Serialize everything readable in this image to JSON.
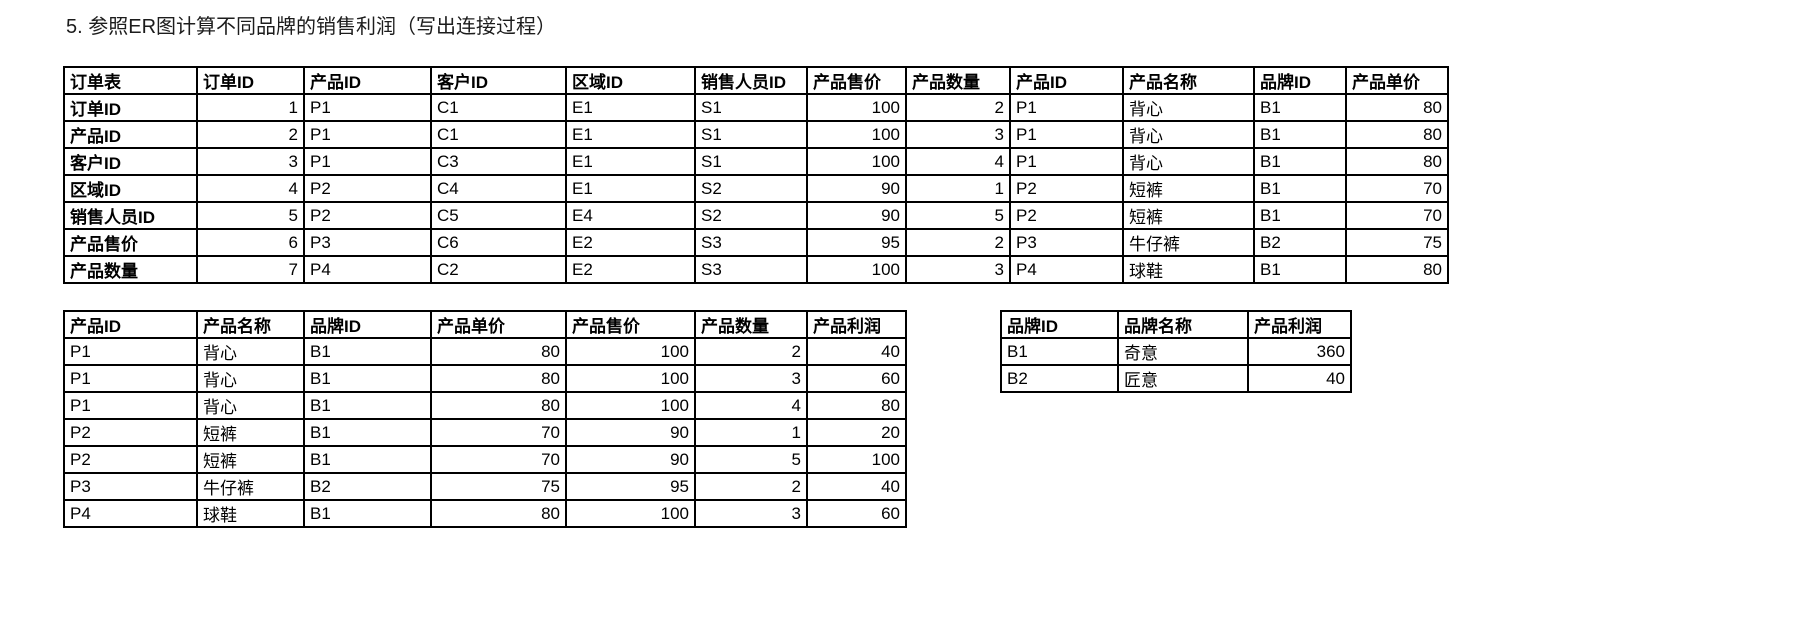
{
  "title": "5. 参照ER图计算不同品牌的销售利润（写出连接过程）",
  "colors": {
    "grid_border": "#000000",
    "text": "#000000",
    "background": "#ffffff"
  },
  "order_table": {
    "columns": [
      "订单表",
      "订单ID",
      "产品ID",
      "客户ID",
      "区域ID",
      "销售人员ID",
      "产品售价",
      "产品数量",
      "产品ID",
      "产品名称",
      "品牌ID",
      "产品单价"
    ],
    "rows": [
      [
        "订单ID",
        "1",
        "P1",
        "C1",
        "E1",
        "S1",
        "100",
        "2",
        "P1",
        "背心",
        "B1",
        "80"
      ],
      [
        "产品ID",
        "2",
        "P1",
        "C1",
        "E1",
        "S1",
        "100",
        "3",
        "P1",
        "背心",
        "B1",
        "80"
      ],
      [
        "客户ID",
        "3",
        "P1",
        "C3",
        "E1",
        "S1",
        "100",
        "4",
        "P1",
        "背心",
        "B1",
        "80"
      ],
      [
        "区域ID",
        "4",
        "P2",
        "C4",
        "E1",
        "S2",
        "90",
        "1",
        "P2",
        "短裤",
        "B1",
        "70"
      ],
      [
        "销售人员ID",
        "5",
        "P2",
        "C5",
        "E4",
        "S2",
        "90",
        "5",
        "P2",
        "短裤",
        "B1",
        "70"
      ],
      [
        "产品售价",
        "6",
        "P3",
        "C6",
        "E2",
        "S3",
        "95",
        "2",
        "P3",
        "牛仔裤",
        "B2",
        "75"
      ],
      [
        "产品数量",
        "7",
        "P4",
        "C2",
        "E2",
        "S3",
        "100",
        "3",
        "P4",
        "球鞋",
        "B1",
        "80"
      ]
    ]
  },
  "product_table": {
    "columns": [
      "产品ID",
      "产品名称",
      "品牌ID",
      "产品单价",
      "产品售价",
      "产品数量",
      "产品利润"
    ],
    "rows": [
      [
        "P1",
        "背心",
        "B1",
        "80",
        "100",
        "2",
        "40"
      ],
      [
        "P1",
        "背心",
        "B1",
        "80",
        "100",
        "3",
        "60"
      ],
      [
        "P1",
        "背心",
        "B1",
        "80",
        "100",
        "4",
        "80"
      ],
      [
        "P2",
        "短裤",
        "B1",
        "70",
        "90",
        "1",
        "20"
      ],
      [
        "P2",
        "短裤",
        "B1",
        "70",
        "90",
        "5",
        "100"
      ],
      [
        "P3",
        "牛仔裤",
        "B2",
        "75",
        "95",
        "2",
        "40"
      ],
      [
        "P4",
        "球鞋",
        "B1",
        "80",
        "100",
        "3",
        "60"
      ]
    ]
  },
  "brand_table": {
    "columns": [
      "品牌ID",
      "品牌名称",
      "产品利润"
    ],
    "rows": [
      [
        "B1",
        "奇意",
        "360"
      ],
      [
        "B2",
        "匠意",
        "40"
      ]
    ]
  }
}
